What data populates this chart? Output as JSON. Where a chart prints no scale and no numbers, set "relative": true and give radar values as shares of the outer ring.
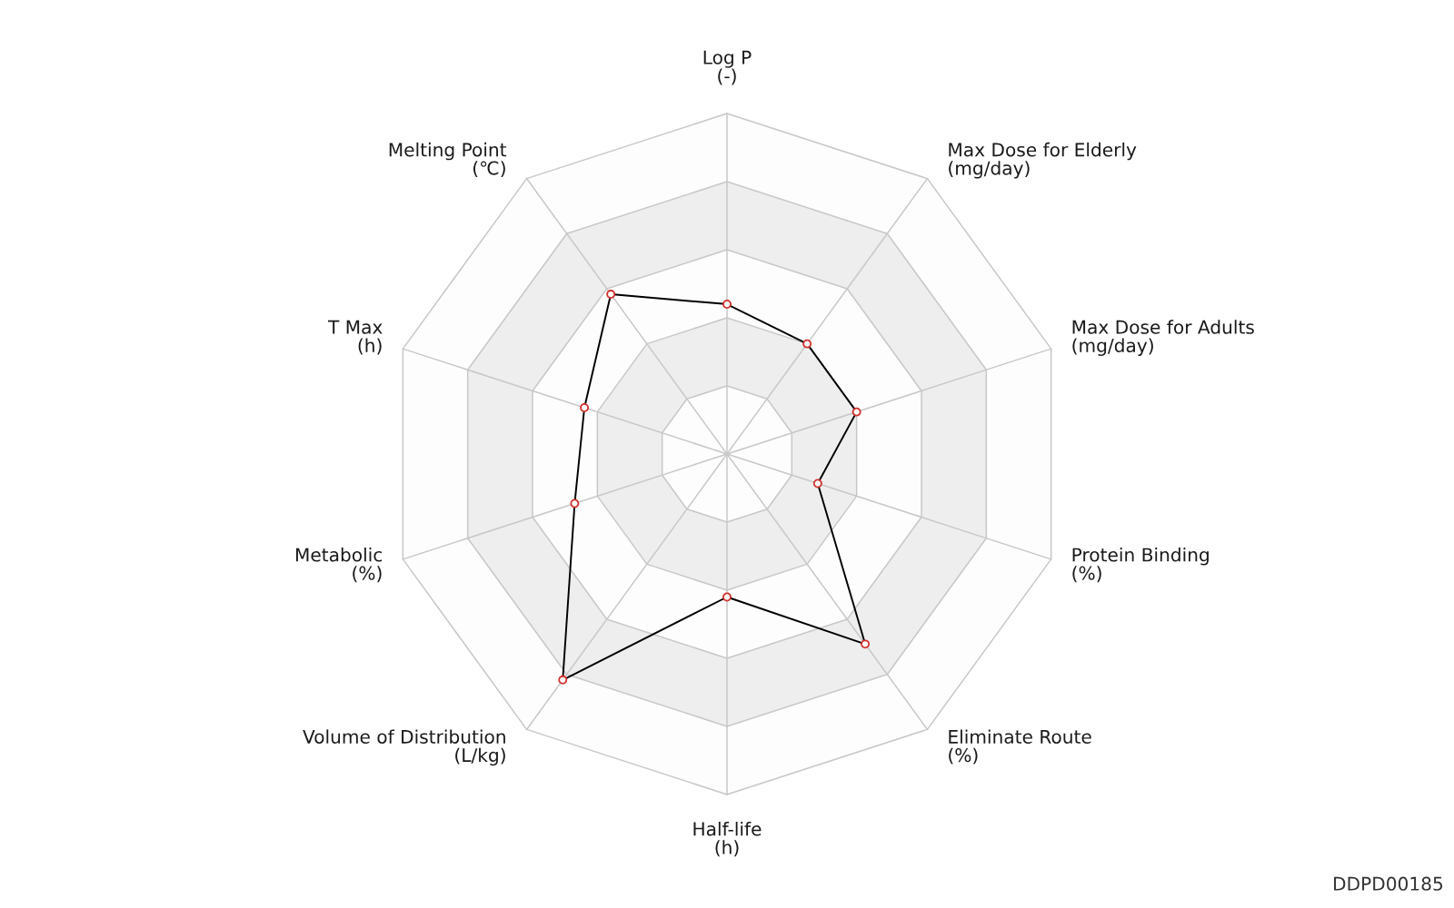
{
  "chart_data": {
    "type": "radar",
    "relative": true,
    "categories": [
      "Log P\n(-)",
      "Max Dose for Elderly\n(mg/day)",
      "Max Dose for Adults\n(mg/day)",
      "Protein Binding\n(%)",
      "Eliminate Route\n(%)",
      "Half-life\n(h)",
      "Volume of Distribution\n(L/kg)",
      "Metabolic\n(%)",
      "T Max\n(h)",
      "Melting Point\n(℃)"
    ],
    "series": [
      {
        "color": "#000000",
        "colors": [
          "#d0312d",
          "#d0312d",
          "#d0312d",
          "#d0312d",
          "#d0312d",
          "#d0312d",
          "#d0312d",
          "#d0312d",
          "#d0312d",
          "#d0312d"
        ],
        "values": [
          0.44,
          0.4,
          0.4,
          0.28,
          0.69,
          0.42,
          0.82,
          0.47,
          0.44,
          0.58
        ]
      }
    ],
    "marker": "circle",
    "line_style": "solid",
    "grid": true,
    "annotations": [
      "DDPD00185"
    ]
  }
}
